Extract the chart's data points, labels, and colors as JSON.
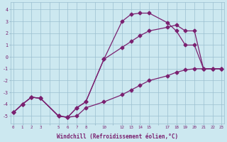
{
  "xlabel": "Windchill (Refroidissement éolien,°C)",
  "bg_color": "#cce8f0",
  "grid_color": "#9bbfcf",
  "line_color": "#7a2070",
  "line1_x": [
    0,
    1,
    2,
    3,
    5,
    6,
    7,
    8,
    10,
    12,
    13,
    14,
    15,
    17,
    18,
    19,
    20,
    21,
    22,
    23
  ],
  "line1_y": [
    -4.7,
    -4.0,
    -3.4,
    -3.5,
    -5.0,
    -5.1,
    -5.0,
    -4.3,
    -3.8,
    -3.2,
    -2.8,
    -2.4,
    -2.0,
    -1.6,
    -1.3,
    -1.1,
    -1.0,
    -1.0,
    -1.0,
    -1.0
  ],
  "line2_x": [
    0,
    1,
    2,
    3,
    5,
    6,
    7,
    8,
    10,
    12,
    13,
    14,
    15,
    17,
    18,
    19,
    20,
    21,
    22,
    23
  ],
  "line2_y": [
    -4.7,
    -4.0,
    -3.4,
    -3.5,
    -5.0,
    -5.1,
    -4.3,
    -3.8,
    -0.2,
    3.0,
    3.6,
    3.7,
    3.7,
    2.9,
    2.2,
    1.0,
    1.0,
    -1.0,
    -1.0,
    -1.0
  ],
  "line3_x": [
    0,
    1,
    2,
    3,
    5,
    6,
    7,
    8,
    10,
    12,
    13,
    14,
    15,
    17,
    18,
    19,
    20,
    21,
    22,
    23
  ],
  "line3_y": [
    -4.7,
    -4.0,
    -3.4,
    -3.5,
    -5.0,
    -5.1,
    -4.3,
    -3.8,
    -0.2,
    0.8,
    1.3,
    1.8,
    2.2,
    2.5,
    2.7,
    2.2,
    2.2,
    -1.0,
    -1.0,
    -1.0
  ],
  "xlim": [
    -0.3,
    23.3
  ],
  "ylim": [
    -5.6,
    4.6
  ],
  "xticks": [
    0,
    1,
    2,
    3,
    5,
    6,
    7,
    8,
    10,
    12,
    13,
    14,
    15,
    17,
    18,
    19,
    20,
    21,
    22,
    23
  ],
  "yticks": [
    -5,
    -4,
    -3,
    -2,
    -1,
    0,
    1,
    2,
    3,
    4
  ]
}
